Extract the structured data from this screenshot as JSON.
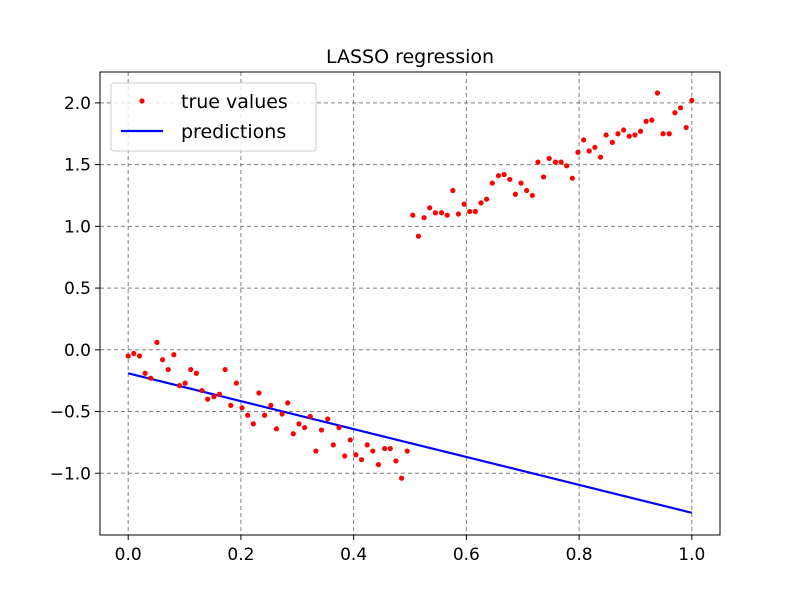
{
  "chart_data": {
    "type": "scatter",
    "title": "LASSO regression",
    "xlabel": "",
    "ylabel": "",
    "xlim": [
      -0.05,
      1.05
    ],
    "ylim": [
      -1.5,
      2.25
    ],
    "xticks": [
      0.0,
      0.2,
      0.4,
      0.6,
      0.8,
      1.0
    ],
    "xtick_labels": [
      "0.0",
      "0.2",
      "0.4",
      "0.6",
      "0.8",
      "1.0"
    ],
    "yticks": [
      -1.0,
      -0.5,
      0.0,
      0.5,
      1.0,
      1.5,
      2.0
    ],
    "ytick_labels": [
      "−1.0",
      "−0.5",
      "0.0",
      "0.5",
      "1.0",
      "1.5",
      "2.0"
    ],
    "grid": true,
    "legend_position": "top-left",
    "series": [
      {
        "name": "true values",
        "kind": "points",
        "color": "#ff0000",
        "x": [
          0.0,
          0.01,
          0.02,
          0.03,
          0.04,
          0.051,
          0.061,
          0.071,
          0.081,
          0.091,
          0.101,
          0.111,
          0.121,
          0.131,
          0.141,
          0.152,
          0.162,
          0.172,
          0.182,
          0.192,
          0.202,
          0.212,
          0.222,
          0.232,
          0.242,
          0.253,
          0.263,
          0.273,
          0.283,
          0.293,
          0.303,
          0.313,
          0.323,
          0.333,
          0.343,
          0.354,
          0.364,
          0.374,
          0.384,
          0.394,
          0.404,
          0.414,
          0.424,
          0.434,
          0.444,
          0.455,
          0.465,
          0.475,
          0.485,
          0.495,
          0.505,
          0.515,
          0.525,
          0.535,
          0.545,
          0.556,
          0.566,
          0.576,
          0.586,
          0.596,
          0.606,
          0.616,
          0.626,
          0.636,
          0.646,
          0.657,
          0.667,
          0.677,
          0.687,
          0.697,
          0.707,
          0.717,
          0.727,
          0.737,
          0.747,
          0.758,
          0.768,
          0.778,
          0.788,
          0.798,
          0.808,
          0.818,
          0.828,
          0.838,
          0.848,
          0.859,
          0.869,
          0.879,
          0.889,
          0.899,
          0.909,
          0.919,
          0.929,
          0.939,
          0.949,
          0.96,
          0.97,
          0.98,
          0.99,
          1.0
        ],
        "y": [
          -0.05,
          -0.03,
          -0.05,
          -0.19,
          -0.23,
          0.06,
          -0.08,
          -0.16,
          -0.04,
          -0.29,
          -0.27,
          -0.16,
          -0.19,
          -0.33,
          -0.4,
          -0.38,
          -0.36,
          -0.16,
          -0.45,
          -0.27,
          -0.47,
          -0.53,
          -0.6,
          -0.35,
          -0.53,
          -0.45,
          -0.64,
          -0.52,
          -0.43,
          -0.68,
          -0.6,
          -0.63,
          -0.54,
          -0.82,
          -0.65,
          -0.56,
          -0.77,
          -0.63,
          -0.86,
          -0.73,
          -0.85,
          -0.89,
          -0.77,
          -0.82,
          -0.93,
          -0.8,
          -0.8,
          -0.9,
          -1.04,
          -0.82,
          1.09,
          0.92,
          1.07,
          1.15,
          1.11,
          1.11,
          1.09,
          1.29,
          1.1,
          1.18,
          1.12,
          1.12,
          1.19,
          1.22,
          1.35,
          1.41,
          1.42,
          1.38,
          1.26,
          1.35,
          1.29,
          1.25,
          1.52,
          1.4,
          1.55,
          1.52,
          1.52,
          1.49,
          1.39,
          1.6,
          1.7,
          1.61,
          1.64,
          1.56,
          1.74,
          1.68,
          1.75,
          1.78,
          1.73,
          1.74,
          1.77,
          1.85,
          1.86,
          2.08,
          1.75,
          1.75,
          1.92,
          1.96,
          1.8,
          2.02
        ]
      },
      {
        "name": "predictions",
        "kind": "line",
        "color": "#0000ff",
        "x": [
          0.0,
          1.0
        ],
        "y": [
          -0.19,
          -1.32
        ]
      }
    ]
  }
}
